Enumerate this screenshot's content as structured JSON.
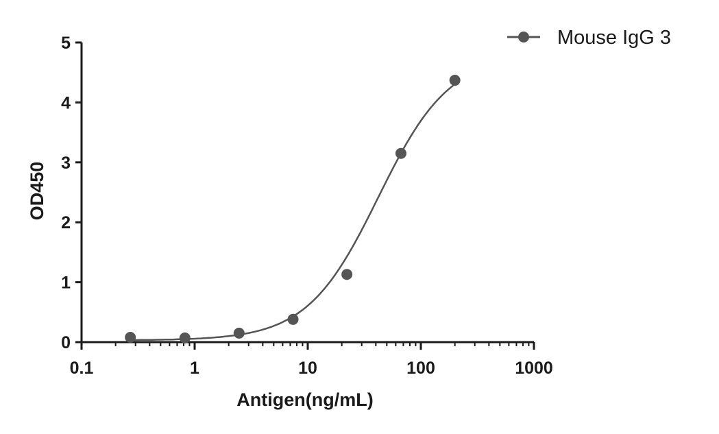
{
  "chart_data": {
    "type": "scatter",
    "xlabel": "Antigen(ng/mL)",
    "ylabel": "OD450",
    "x_scale": "log",
    "xlim": [
      0.1,
      1000
    ],
    "ylim": [
      0,
      5
    ],
    "x_ticks": [
      0.1,
      1,
      10,
      100,
      1000
    ],
    "x_tick_labels": [
      "0.1",
      "1",
      "10",
      "100",
      "1000"
    ],
    "y_ticks": [
      0,
      1,
      2,
      3,
      4,
      5
    ],
    "y_tick_labels": [
      "0",
      "1",
      "2",
      "3",
      "4",
      "5"
    ],
    "grid": false,
    "legend_position": "top-right",
    "series": [
      {
        "name": "Mouse IgG 3",
        "color": "#555555",
        "marker": "circle",
        "fit": "4PL sigmoidal curve",
        "x": [
          0.27,
          0.82,
          2.47,
          7.41,
          22.2,
          66.7,
          200
        ],
        "y": [
          0.08,
          0.07,
          0.15,
          0.38,
          1.13,
          3.15,
          4.37
        ]
      }
    ]
  }
}
